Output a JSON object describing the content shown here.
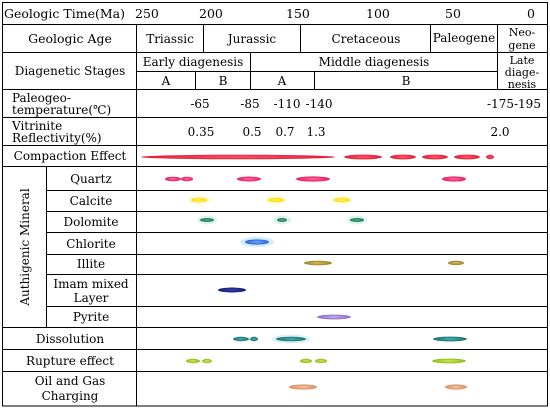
{
  "header": {
    "time_label": "Geologic Time(Ma)",
    "time_ticks": [
      "250",
      "200",
      "150",
      "100",
      "50",
      "0"
    ]
  },
  "rows": {
    "geologic_age": "Geologic Age",
    "diagenetic_stages": "Diagenetic Stages",
    "paleotemp": "Paleogeo-",
    "paleotemp_2": "temperature(℃)",
    "vitrinite": "Vitrinite",
    "vitrinite_2": "Reflectivity(%)",
    "compaction": "Compaction Effect",
    "authigenic": "Authigenic Mineral",
    "dissolution": "Dissolution",
    "rupture": "Rupture effect",
    "oil_gas": "Oil and Gas",
    "oil_gas_2": "Charging"
  },
  "ages": [
    "Triassic",
    "Jurassic",
    "Cretaceous",
    "Paleogene",
    "Neo-",
    "gene"
  ],
  "stages": {
    "early": "Early diagenesis",
    "middle": "Middle diagenesis",
    "late": "Late",
    "late_2": "diage-",
    "late_3": "nesis",
    "sub_a1": "A",
    "sub_b1": "B",
    "sub_a2": "A",
    "sub_b2": "B"
  },
  "temps": [
    "-65",
    "-85",
    "-110",
    "-140",
    "-175-195"
  ],
  "vitrinite_values": [
    "0.35",
    "0.5",
    "0.7",
    "1.3",
    "2.0"
  ],
  "minerals": {
    "quartz": "Quartz",
    "calcite": "Calcite",
    "dolomite": "Dolomite",
    "chlorite": "Chlorite",
    "illite": "Illite",
    "imam": "Imam mixed",
    "imam_2": "Layer",
    "pyrite": "Pyrite"
  },
  "colors": {
    "compaction": "#e8223a",
    "quartz": "#e8246a",
    "calcite": "#ffe600",
    "dolomite": "#2e8b57",
    "chlorite": "#3b78e0",
    "illite": "#b89a35",
    "imam": "#1c2380",
    "pyrite": "#9e7fd0",
    "dissolution": "#1e8a8a",
    "rupture": "#a8cf1e",
    "oil_gas": "#e3a47e"
  }
}
